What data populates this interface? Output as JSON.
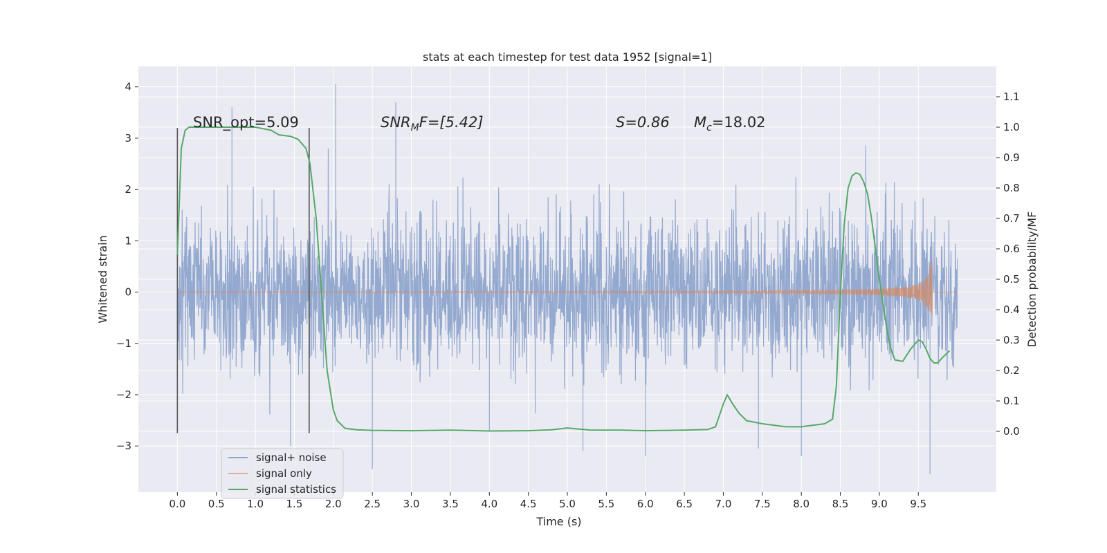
{
  "chart_data": {
    "type": "line",
    "title": "stats at each timestep for test data 1952 [signal=1]",
    "xlabel": "Time (s)",
    "ylabel": "Whitened strain",
    "ylabel_right": "Detection probability/MF",
    "xlim": [
      -0.5,
      10.5
    ],
    "ylim": [
      -3.9,
      4.4
    ],
    "ylim_right": [
      -0.2,
      1.2
    ],
    "x_ticks": [
      0.0,
      0.5,
      1.0,
      1.5,
      2.0,
      2.5,
      3.0,
      3.5,
      4.0,
      4.5,
      5.0,
      5.5,
      6.0,
      6.5,
      7.0,
      7.5,
      8.0,
      8.5,
      9.0,
      9.5
    ],
    "x_tick_labels": [
      "0.0",
      "0.5",
      "1.0",
      "1.5",
      "2.0",
      "2.5",
      "3.0",
      "3.5",
      "4.0",
      "4.5",
      "5.0",
      "5.5",
      "6.0",
      "6.5",
      "7.0",
      "7.5",
      "8.0",
      "8.5",
      "9.0",
      "9.5"
    ],
    "y_ticks": [
      -3,
      -2,
      -1,
      0,
      1,
      2,
      3,
      4
    ],
    "y_tick_labels": [
      "−3",
      "−2",
      "−1",
      "0",
      "1",
      "2",
      "3",
      "4"
    ],
    "y_right_ticks": [
      0.0,
      0.1,
      0.2,
      0.3,
      0.4,
      0.5,
      0.6,
      0.7,
      0.8,
      0.9,
      1.0,
      1.1
    ],
    "y_right_tick_labels": [
      "0.0",
      "0.1",
      "0.2",
      "0.3",
      "0.4",
      "0.5",
      "0.6",
      "0.7",
      "0.8",
      "0.9",
      "1.0",
      "1.1"
    ],
    "grid": true,
    "legend": {
      "placement": "lower-left",
      "entries": [
        "signal+ noise",
        "signal only",
        "signal statistics"
      ]
    },
    "annotations": {
      "snr_opt": "SNR_opt=5.09",
      "snr_mf_base": "SNR",
      "snr_mf_sub": "M",
      "snr_mf_rest": "F=[5.42]",
      "s_stat": "S=0.86",
      "mc_base": "M",
      "mc_sub": "c",
      "mc_rest": "=18.02"
    },
    "window_markers_x": [
      0.0,
      1.69
    ],
    "window_markers_y": [
      -2.75,
      3.2
    ],
    "series": [
      {
        "name": "signal+ noise",
        "axis": "left",
        "color": "#8fa5cc",
        "x_range": [
          0.0,
          10.0
        ],
        "noise_std": 0.95,
        "outliers": [
          {
            "x": 2.03,
            "y": 4.05
          },
          {
            "x": 2.8,
            "y": 3.7
          },
          {
            "x": 0.7,
            "y": 3.6
          },
          {
            "x": 2.5,
            "y": -3.45
          },
          {
            "x": 9.65,
            "y": -3.55
          },
          {
            "x": 1.45,
            "y": -3.0
          },
          {
            "x": 4.0,
            "y": -2.7
          },
          {
            "x": 5.2,
            "y": -3.1
          },
          {
            "x": 6.0,
            "y": -3.2
          },
          {
            "x": 7.45,
            "y": -3.05
          },
          {
            "x": 8.0,
            "y": -3.2
          }
        ]
      },
      {
        "name": "signal only",
        "axis": "left",
        "color": "#dd8452",
        "x_range": [
          0.0,
          10.0
        ],
        "merger_x": 9.68,
        "peak_amplitude": 0.95
      },
      {
        "name": "signal statistics",
        "axis": "right",
        "color": "#55a868",
        "x": [
          0.0,
          0.05,
          0.1,
          0.15,
          0.2,
          0.3,
          0.5,
          0.8,
          1.0,
          1.2,
          1.3,
          1.45,
          1.55,
          1.65,
          1.7,
          1.78,
          1.85,
          1.92,
          2.0,
          2.05,
          2.15,
          2.3,
          2.5,
          3.0,
          3.5,
          4.0,
          4.5,
          4.8,
          5.0,
          5.3,
          5.7,
          6.0,
          6.5,
          6.8,
          6.9,
          7.0,
          7.05,
          7.12,
          7.2,
          7.3,
          7.5,
          7.8,
          8.0,
          8.3,
          8.4,
          8.45,
          8.5,
          8.55,
          8.6,
          8.65,
          8.7,
          8.75,
          8.8,
          8.85,
          8.9,
          9.0,
          9.1,
          9.15,
          9.2,
          9.3,
          9.4,
          9.5,
          9.55,
          9.6,
          9.65,
          9.7,
          9.75,
          9.8,
          9.9
        ],
        "y": [
          0.58,
          0.93,
          0.99,
          1.0,
          1.0,
          1.0,
          1.0,
          1.0,
          1.0,
          0.99,
          0.975,
          0.97,
          0.96,
          0.93,
          0.88,
          0.7,
          0.45,
          0.2,
          0.07,
          0.035,
          0.01,
          0.005,
          0.003,
          0.002,
          0.004,
          0.001,
          0.002,
          0.005,
          0.011,
          0.004,
          0.004,
          0.002,
          0.004,
          0.006,
          0.015,
          0.09,
          0.12,
          0.09,
          0.06,
          0.035,
          0.025,
          0.015,
          0.015,
          0.025,
          0.04,
          0.15,
          0.45,
          0.68,
          0.8,
          0.84,
          0.85,
          0.845,
          0.82,
          0.78,
          0.7,
          0.5,
          0.33,
          0.27,
          0.235,
          0.23,
          0.27,
          0.3,
          0.295,
          0.27,
          0.24,
          0.225,
          0.225,
          0.24,
          0.265
        ]
      }
    ]
  },
  "colors": {
    "plot_background": "#eaeaf2",
    "grid": "#ffffff",
    "marker_line": "#555555"
  }
}
